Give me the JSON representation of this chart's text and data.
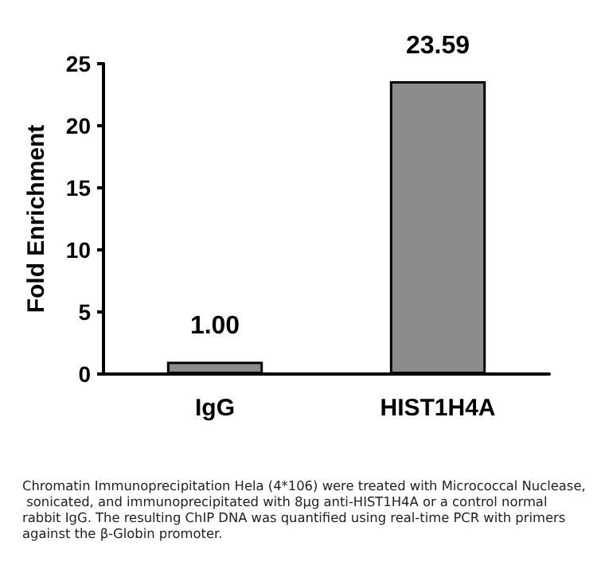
{
  "chart_data": {
    "type": "bar",
    "ylabel": "Fold Enrichment",
    "categories": [
      "IgG",
      "HIST1H4A"
    ],
    "values": [
      1.0,
      23.59
    ],
    "value_labels": [
      "1.00",
      "23.59"
    ],
    "color": "#8c8c8c",
    "ylim": [
      0,
      25
    ],
    "yticks": [
      0,
      5,
      10,
      15,
      20,
      25
    ],
    "grid": false,
    "annotations": [
      "Chromatin Immunoprecipitation Hela (4*106) were treated with Micrococcal Nuclease, sonicated, and immunoprecipitated with 8μg anti-HIST1H4A or a control normal rabbit IgG. The resulting ChIP DNA was quantified using real-time PCR with primers against the β-Globin promoter."
    ]
  }
}
